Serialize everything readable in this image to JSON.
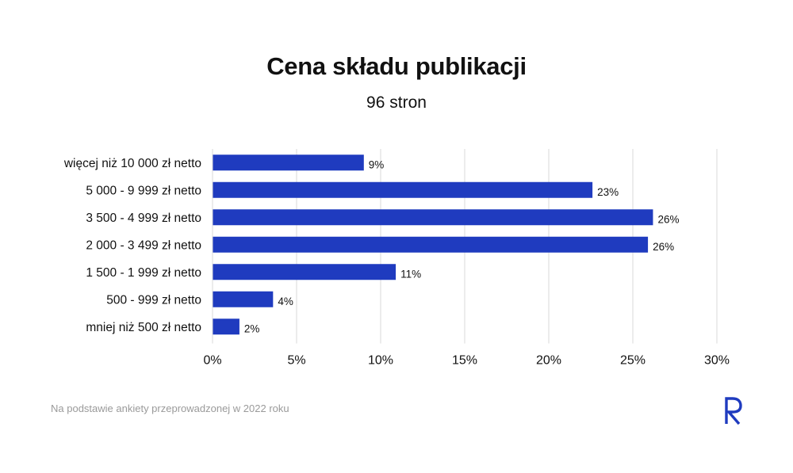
{
  "header": {
    "title": "Cena składu publikacji",
    "subtitle": "96 stron"
  },
  "footer": {
    "note": "Na podstawie ankiety przeprowadzonej w 2022 roku",
    "logo_icon": "r-logo-icon"
  },
  "colors": {
    "bar": "#1f3bbf",
    "grid": "#d9d9d9",
    "text": "#111111",
    "logo": "#1f3bbf"
  },
  "chart_data": {
    "type": "bar",
    "orientation": "horizontal",
    "title": "Cena składu publikacji",
    "subtitle": "96 stron",
    "categories": [
      "więcej niż 10 000 zł netto",
      "5 000 - 9 999 zł netto",
      "3 500 - 4 999 zł netto",
      "2 000 - 3 499 zł netto",
      "1 500 - 1 999 zł netto",
      "500 - 999 zł netto",
      "mniej niż 500 zł netto"
    ],
    "values": [
      9,
      22.6,
      26.2,
      25.9,
      10.9,
      3.6,
      1.6
    ],
    "value_labels": [
      "9%",
      "23%",
      "26%",
      "26%",
      "11%",
      "4%",
      "2%"
    ],
    "xlim": [
      0,
      30
    ],
    "xticks": [
      0,
      5,
      10,
      15,
      20,
      25,
      30
    ],
    "xtick_labels": [
      "0%",
      "5%",
      "10%",
      "15%",
      "20%",
      "25%",
      "30%"
    ],
    "grid": "vertical"
  }
}
